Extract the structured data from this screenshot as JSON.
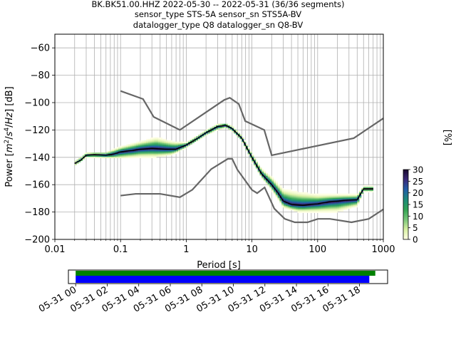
{
  "chart_data": {
    "type": "heatmap",
    "title_lines": [
      "BK.BK51.00.HHZ   2022-05-30 -- 2022-05-31  (36/36 segments)",
      "sensor_type STS-5A sensor_sn STS5A-BV",
      "datalogger_type Q8 datalogger_sn Q8-BV"
    ],
    "xlabel": "Period [s]",
    "ylabel_parts": [
      "Power [",
      "m",
      "2",
      "/",
      "s",
      "4",
      "/",
      "Hz",
      "] [dB]"
    ],
    "xscale": "log",
    "xlim": [
      0.01,
      1000
    ],
    "ylim": [
      -200,
      -50
    ],
    "grid": true,
    "x_ticks": [
      {
        "v": 0.01,
        "label": "0.01"
      },
      {
        "v": 0.1,
        "label": "0.1"
      },
      {
        "v": 1,
        "label": "1"
      },
      {
        "v": 10,
        "label": "10"
      },
      {
        "v": 100,
        "label": "100"
      },
      {
        "v": 1000,
        "label": "1000"
      }
    ],
    "y_ticks": [
      {
        "v": -60,
        "label": "−60"
      },
      {
        "v": -80,
        "label": "−80"
      },
      {
        "v": -100,
        "label": "−100"
      },
      {
        "v": -120,
        "label": "−120"
      },
      {
        "v": -140,
        "label": "−140"
      },
      {
        "v": -160,
        "label": "−160"
      },
      {
        "v": -180,
        "label": "−180"
      },
      {
        "v": -200,
        "label": "−200"
      }
    ],
    "colorbar": {
      "label": "[%]",
      "range": [
        0,
        30
      ],
      "ticks": [
        {
          "v": 0,
          "label": "0"
        },
        {
          "v": 5,
          "label": "5"
        },
        {
          "v": 10,
          "label": "10"
        },
        {
          "v": 15,
          "label": "15"
        },
        {
          "v": 20,
          "label": "20"
        },
        {
          "v": 25,
          "label": "25"
        },
        {
          "v": 30,
          "label": "30"
        }
      ],
      "colors": [
        "#ffffe5",
        "#d9f0a3",
        "#78c679",
        "#31a354",
        "#1d8a7a",
        "#225ea8",
        "#3b2a7a",
        "#1a0a2e"
      ]
    },
    "nhnm": [
      [
        0.1,
        -91.5
      ],
      [
        0.22,
        -97.4
      ],
      [
        0.32,
        -110.5
      ],
      [
        0.8,
        -120
      ],
      [
        3.8,
        -98
      ],
      [
        4.6,
        -96.5
      ],
      [
        6.3,
        -101
      ],
      [
        7.9,
        -113.5
      ],
      [
        15.4,
        -120
      ],
      [
        20,
        -138.5
      ],
      [
        354.8,
        -126
      ],
      [
        1000,
        -111.5
      ]
    ],
    "nlnm": [
      [
        0.1,
        -168
      ],
      [
        0.17,
        -166.7
      ],
      [
        0.4,
        -166.7
      ],
      [
        0.8,
        -169.2
      ],
      [
        1.24,
        -163.7
      ],
      [
        2.4,
        -148.6
      ],
      [
        4.3,
        -141.1
      ],
      [
        5,
        -141.1
      ],
      [
        6,
        -149
      ],
      [
        10,
        -163.8
      ],
      [
        12,
        -166.2
      ],
      [
        15.6,
        -162
      ],
      [
        21.9,
        -177.5
      ],
      [
        31.6,
        -185
      ],
      [
        45,
        -187.5
      ],
      [
        70,
        -187.5
      ],
      [
        101,
        -185
      ],
      [
        154,
        -185
      ],
      [
        328,
        -187.5
      ],
      [
        600,
        -185
      ],
      [
        1000,
        -178
      ]
    ],
    "mode_curve": [
      [
        0.02,
        -144.5
      ],
      [
        0.025,
        -142
      ],
      [
        0.03,
        -138.5
      ],
      [
        0.04,
        -138
      ],
      [
        0.06,
        -138.5
      ],
      [
        0.08,
        -137.5
      ],
      [
        0.1,
        -136
      ],
      [
        0.15,
        -135
      ],
      [
        0.2,
        -134
      ],
      [
        0.3,
        -133.5
      ],
      [
        0.5,
        -134
      ],
      [
        0.7,
        -134
      ],
      [
        1.0,
        -131
      ],
      [
        1.5,
        -126
      ],
      [
        2.0,
        -122
      ],
      [
        3.0,
        -117.5
      ],
      [
        4.0,
        -116.5
      ],
      [
        5.0,
        -119
      ],
      [
        7.0,
        -126
      ],
      [
        10.0,
        -140
      ],
      [
        14.0,
        -152
      ],
      [
        20.0,
        -160
      ],
      [
        25.0,
        -166
      ],
      [
        30.0,
        -172
      ],
      [
        40.0,
        -174.5
      ],
      [
        60.0,
        -175
      ],
      [
        100.0,
        -174
      ],
      [
        150.0,
        -172.5
      ],
      [
        250.0,
        -171.5
      ],
      [
        400.0,
        -171
      ],
      [
        500.0,
        -163
      ],
      [
        700.0,
        -163
      ]
    ],
    "spread_upper": [
      [
        0.02,
        -143
      ],
      [
        0.03,
        -136.5
      ],
      [
        0.06,
        -136
      ],
      [
        0.1,
        -132
      ],
      [
        0.2,
        -128
      ],
      [
        0.35,
        -125
      ],
      [
        0.6,
        -128
      ],
      [
        1.0,
        -129
      ],
      [
        2.0,
        -120
      ],
      [
        3.0,
        -115.5
      ],
      [
        4.0,
        -115
      ],
      [
        5.0,
        -117
      ],
      [
        7.0,
        -124
      ],
      [
        10.0,
        -137
      ],
      [
        14.0,
        -148
      ],
      [
        20.0,
        -154
      ],
      [
        30.0,
        -163
      ],
      [
        50.0,
        -165
      ],
      [
        100.0,
        -167
      ],
      [
        200.0,
        -167
      ],
      [
        400.0,
        -167
      ],
      [
        500.0,
        -161
      ],
      [
        700.0,
        -161
      ]
    ],
    "spread_lower": [
      [
        0.02,
        -146
      ],
      [
        0.03,
        -140
      ],
      [
        0.06,
        -140.5
      ],
      [
        0.1,
        -141
      ],
      [
        0.2,
        -140
      ],
      [
        0.35,
        -140
      ],
      [
        0.6,
        -138.5
      ],
      [
        1.0,
        -133
      ],
      [
        2.0,
        -124
      ],
      [
        3.0,
        -120
      ],
      [
        4.0,
        -118.5
      ],
      [
        5.0,
        -121
      ],
      [
        7.0,
        -128
      ],
      [
        10.0,
        -143
      ],
      [
        14.0,
        -155
      ],
      [
        20.0,
        -164
      ],
      [
        25.0,
        -171
      ],
      [
        30.0,
        -177
      ],
      [
        50.0,
        -180
      ],
      [
        100.0,
        -180
      ],
      [
        200.0,
        -180
      ],
      [
        400.0,
        -176
      ],
      [
        500.0,
        -165
      ],
      [
        700.0,
        -165
      ]
    ],
    "time_axis": {
      "labels": [
        "05-31 00",
        "05-31 02",
        "05-31 04",
        "05-31 06",
        "05-31 08",
        "05-31 10",
        "05-31 12",
        "05-31 14",
        "05-31 16",
        "05-31 18"
      ],
      "hours": [
        0,
        2,
        4,
        6,
        8,
        10,
        12,
        14,
        16,
        18
      ],
      "range_hours": [
        -0.46,
        19.78
      ],
      "coverage_hours": [
        0,
        19
      ],
      "data_hours": [
        0,
        18.62
      ],
      "coverage_color": "#008000",
      "data_color": "#0000ff"
    }
  }
}
